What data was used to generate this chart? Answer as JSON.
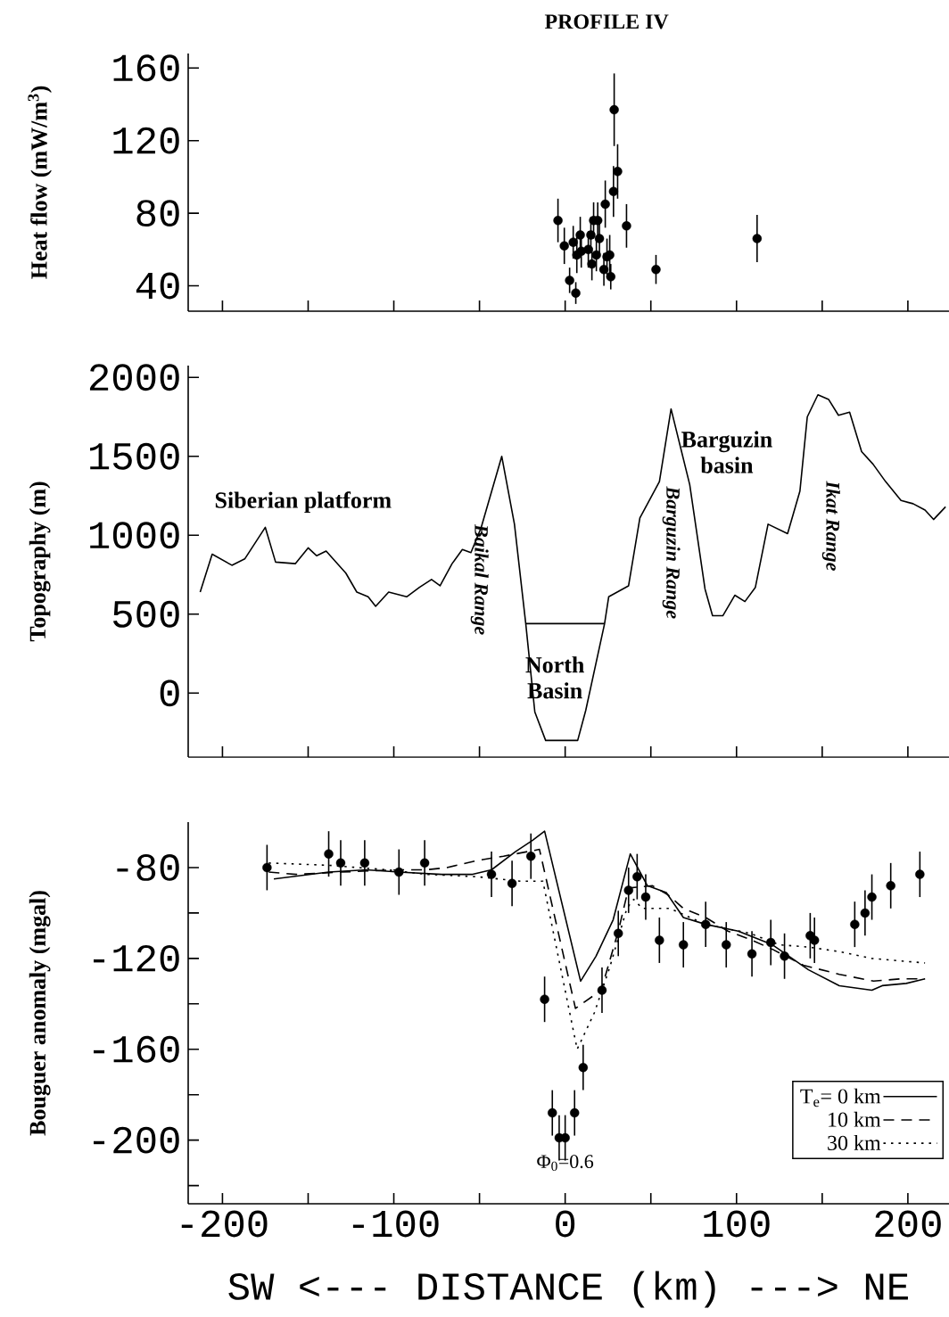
{
  "chart_data": [
    {
      "type": "scatter",
      "title": "PROFILE IV",
      "ylabel": "Heat flow (mW/m$^{3}$)",
      "color": "#000000",
      "marker": "circle",
      "x": [
        -4.2,
        -0.5,
        2.6,
        6.2,
        4.7,
        6.8,
        8.8,
        9.4,
        13.5,
        15,
        15.6,
        16.6,
        18.2,
        19,
        20,
        23.4,
        22.6,
        24.4,
        26,
        26.6,
        28.6,
        28.2,
        30.6,
        35.8,
        53,
        112
      ],
      "values": [
        76,
        62,
        43,
        36,
        64,
        57,
        68,
        59,
        60,
        68,
        52,
        76,
        57,
        76,
        66,
        85,
        49,
        56,
        57,
        45,
        137,
        92,
        103,
        73,
        49,
        66
      ],
      "errors": [
        12,
        10,
        7,
        6,
        9,
        10,
        10,
        9,
        10,
        10,
        9,
        10,
        9,
        10,
        9,
        13,
        9,
        10,
        11,
        7,
        20,
        14,
        15,
        12,
        8,
        13
      ],
      "xlim": [
        -220,
        224
      ],
      "ylim": [
        26,
        168
      ],
      "xticks": [
        -200,
        {
          "value": -150,
          "label": null
        },
        -100,
        {
          "value": -50,
          "label": null
        },
        0,
        {
          "value": 50,
          "label": null
        },
        100,
        {
          "value": 150,
          "label": null
        },
        200
      ],
      "yticks": [
        40,
        80,
        120,
        160
      ],
      "tick_labels": "y"
    },
    {
      "type": "line",
      "ylabel": "Topography (m)",
      "series": [
        {
          "type": "line",
          "color": "#000000",
          "x": [
            -213,
            -206,
            -194.5,
            -187,
            -175,
            -169,
            -157.5,
            -150,
            -145,
            -139.5,
            -128,
            -121.6,
            -115,
            -110.6,
            -103,
            -92.5,
            -85,
            -78,
            -73,
            -66,
            -60,
            -55,
            -49,
            -37,
            -29.6,
            -23,
            -17.7,
            -11.4,
            7.3,
            12,
            23,
            25.4,
            37,
            43.6,
            55,
            61.8,
            72.7,
            81.6,
            86,
            92,
            99,
            104.9,
            111,
            118.4,
            129.8,
            137,
            141.3,
            147.5,
            153.8,
            159.5,
            166,
            173,
            179.7,
            187,
            196,
            203,
            210,
            215,
            222
          ],
          "values": [
            640,
            880,
            810,
            850,
            1050,
            830,
            820,
            920,
            870,
            900,
            760,
            640,
            610,
            550,
            640,
            610,
            670,
            720,
            680,
            820,
            910,
            890,
            1050,
            1500,
            1070,
            440,
            -120,
            -300,
            -300,
            -110,
            440,
            610,
            680,
            1110,
            1340,
            1800,
            1320,
            660,
            490,
            490,
            620,
            580,
            670,
            1070,
            1010,
            1280,
            1750,
            1890,
            1860,
            1760,
            1780,
            1530,
            1450,
            1340,
            1220,
            1200,
            1160,
            1100,
            1180
          ]
        },
        {
          "type": "line",
          "color": "#000000",
          "x": [
            -23,
            23
          ],
          "values": [
            440,
            440
          ]
        }
      ],
      "annotations": [
        "Siberian platform",
        "Baikal Range",
        "North Basin",
        "Barguzin Range",
        "Barguzin basin",
        "Ikat Range"
      ],
      "xlim": [
        -220,
        224
      ],
      "ylim": [
        -405,
        2075
      ],
      "xticks": [
        -200,
        {
          "value": -150,
          "label": null
        },
        -100,
        {
          "value": -50,
          "label": null
        },
        0,
        {
          "value": 50,
          "label": null
        },
        100,
        {
          "value": 150,
          "label": null
        },
        200
      ],
      "yticks": [
        0,
        500,
        1000,
        1500,
        2000
      ],
      "tick_labels": "y"
    },
    {
      "type": "scatter",
      "xlabel": "SW <--- DISTANCE (km) ---> NE",
      "ylabel": "Bouguer anomaly (mgal)",
      "legend": "bottom right",
      "series": [
        {
          "type": "scatter",
          "color": "#000000",
          "marker": "circle",
          "x": [
            -174,
            -138,
            -131,
            -117,
            -97,
            -82,
            -43,
            -31,
            -20,
            -12,
            -7.5,
            -3.5,
            0,
            5.5,
            10.5,
            21.5,
            31,
            37,
            42,
            47,
            55,
            69,
            82,
            94,
            109,
            120,
            128,
            143,
            145.5,
            169,
            175,
            179,
            190,
            207
          ],
          "values": [
            -80,
            -74,
            -78,
            -78,
            -82,
            -78,
            -83,
            -87,
            -75,
            -138,
            -188,
            -199,
            -199,
            -188,
            -168,
            -134,
            -109,
            -90,
            -84,
            -93,
            -112,
            -114,
            -105,
            -114,
            -118,
            -113,
            -119,
            -110,
            -112,
            -105,
            -100,
            -93,
            -88,
            -83
          ],
          "errors": [
            10,
            10,
            10,
            10,
            10,
            10,
            10,
            10,
            10,
            10,
            10,
            10,
            10,
            10,
            10,
            10,
            10,
            10,
            10,
            10,
            10,
            10,
            10,
            10,
            10,
            10,
            10,
            10,
            10,
            10,
            10,
            10,
            10,
            10
          ]
        },
        {
          "type": "line",
          "name": "T$_{e}$= 0 km",
          "color": "#000000",
          "line_style": "solid",
          "x": [
            -170,
            -138,
            -116,
            -97,
            -72,
            -54,
            -43,
            -29,
            -19,
            -12,
            9,
            18,
            28,
            38,
            48,
            59,
            69,
            82,
            101,
            121,
            142,
            160,
            179,
            185,
            199,
            210
          ],
          "values": [
            -85,
            -82,
            -81,
            -82,
            -83,
            -83,
            -81,
            -73,
            -68,
            -64,
            -130,
            -119,
            -103,
            -74,
            -88,
            -91,
            -102,
            -105,
            -108,
            -114,
            -125,
            -132,
            -134,
            -132,
            -131,
            -129
          ]
        },
        {
          "type": "line",
          "name": "10 km",
          "color": "#000000",
          "line_style": "dashed",
          "x": [
            -173,
            -157,
            -131,
            -97,
            -81,
            -69,
            -52,
            -36,
            -15,
            6,
            21,
            31,
            37,
            51,
            60,
            69,
            82,
            95,
            109,
            121,
            139,
            160,
            180,
            196,
            210
          ],
          "values": [
            -82,
            -83,
            -82,
            -81,
            -81,
            -80,
            -77,
            -75,
            -72,
            -142,
            -134,
            -108,
            -89,
            -88,
            -92,
            -98,
            -102,
            -108,
            -112,
            -116,
            -123,
            -127,
            -130,
            -129,
            -129
          ]
        },
        {
          "type": "line",
          "name": "30 km",
          "color": "#000000",
          "line_style": "dotted",
          "x": [
            -173,
            -138,
            -104,
            -81,
            -52,
            -26,
            -13,
            7,
            17,
            26,
            36,
            40,
            45,
            61,
            82,
            108,
            125,
            142,
            160,
            179,
            194,
            210
          ],
          "values": [
            -78,
            -79,
            -81,
            -83,
            -84,
            -86,
            -86,
            -160,
            -144,
            -124,
            -98,
            -94,
            -98,
            -98,
            -105,
            -109,
            -114,
            -115,
            -117,
            -120,
            -121,
            -122
          ]
        }
      ],
      "annotations": [
        {
          "text": "Φ$_{0}$=0.6",
          "x": 0,
          "y": -210
        }
      ],
      "xlim": [
        -220,
        224
      ],
      "ylim": [
        -228,
        -60
      ],
      "xticks": [
        -200,
        {
          "value": -150,
          "label": null
        },
        -100,
        {
          "value": -50,
          "label": null
        },
        0,
        {
          "value": 50,
          "label": null
        },
        100,
        {
          "value": 150,
          "label": null
        },
        200
      ],
      "yticks": [
        {
          "value": -220,
          "label": null
        },
        -200,
        {
          "value": -180,
          "label": null
        },
        -160,
        {
          "value": -140,
          "label": null
        },
        -120,
        {
          "value": -100,
          "label": null
        },
        -80
      ]
    }
  ]
}
